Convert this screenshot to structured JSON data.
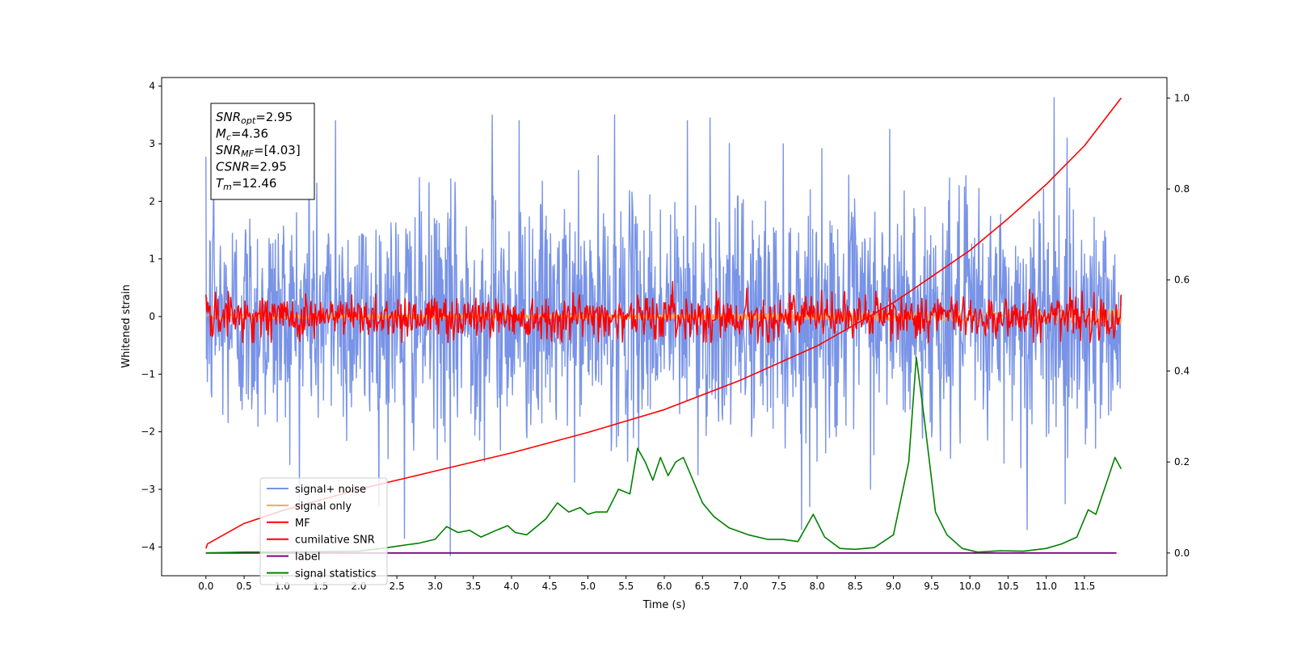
{
  "chart_data": {
    "type": "line",
    "xlabel": "Time (s)",
    "ylabel_left": "Whitened strain",
    "xlim": [
      -0.58,
      12.58
    ],
    "ylim_left": [
      -4.5,
      4.15
    ],
    "ylim_right": [
      -0.05,
      1.045
    ],
    "x_ticks": [
      0.0,
      0.5,
      1.0,
      1.5,
      2.0,
      2.5,
      3.0,
      3.5,
      4.0,
      4.5,
      5.0,
      5.5,
      6.0,
      6.5,
      7.0,
      7.5,
      8.0,
      8.5,
      9.0,
      9.5,
      10.0,
      10.5,
      11.0,
      11.5
    ],
    "x_tick_labels": [
      "0.0",
      "0.5",
      "1.0",
      "1.5",
      "2.0",
      "2.5",
      "3.0",
      "3.5",
      "4.0",
      "4.5",
      "5.0",
      "5.5",
      "6.0",
      "6.5",
      "7.0",
      "7.5",
      "8.0",
      "8.5",
      "9.0",
      "9.5",
      "10.0",
      "10.5",
      "11.0",
      "11.5"
    ],
    "y_ticks_left": [
      -4,
      -3,
      -2,
      -1,
      0,
      1,
      2,
      3,
      4
    ],
    "y_tick_labels_left": [
      "−4",
      "−3",
      "−2",
      "−1",
      "0",
      "1",
      "2",
      "3",
      "4"
    ],
    "y_ticks_right": [
      0.0,
      0.2,
      0.4,
      0.6,
      0.8,
      1.0
    ],
    "y_tick_labels_right": [
      "0.0",
      "0.2",
      "0.4",
      "0.6",
      "0.8",
      "1.0"
    ],
    "grid": false,
    "legend_position": "lower-left",
    "annotation_box": {
      "lines": [
        {
          "base": "SNR",
          "sub": "opt",
          "value": "=2.95"
        },
        {
          "base": "M",
          "sub": "c",
          "value": "=4.36"
        },
        {
          "base": "SNR",
          "sub": "MF",
          "value": "=[4.03]"
        },
        {
          "base": "CSNR",
          "sub": "",
          "value": "=2.95"
        },
        {
          "base": "T",
          "sub": "m",
          "value": "=12.46"
        }
      ]
    },
    "series": [
      {
        "name": "signal+ noise",
        "color": "#7893e7",
        "axis": "left",
        "kind": "noise",
        "x_range": [
          0.0,
          11.98
        ],
        "approx_sigma": 1.0,
        "peak_values": [
          {
            "x": 0.1,
            "y": 2.8
          },
          {
            "x": 1.35,
            "y": 3.3
          },
          {
            "x": 1.7,
            "y": 3.4
          },
          {
            "x": 3.75,
            "y": 3.5
          },
          {
            "x": 4.1,
            "y": 3.4
          },
          {
            "x": 5.35,
            "y": 3.5
          },
          {
            "x": 6.3,
            "y": 3.4
          },
          {
            "x": 6.6,
            "y": 3.45
          },
          {
            "x": 8.95,
            "y": 3.25
          },
          {
            "x": 11.1,
            "y": 3.8
          },
          {
            "x": 3.2,
            "y": -4.15
          },
          {
            "x": 2.6,
            "y": -3.85
          },
          {
            "x": 7.8,
            "y": -3.7
          },
          {
            "x": 10.75,
            "y": -3.7
          },
          {
            "x": 11.25,
            "y": -3.25
          }
        ]
      },
      {
        "name": "signal only",
        "color": "#f2a95c",
        "axis": "left",
        "kind": "chirp",
        "x_range": [
          0.0,
          11.98
        ],
        "amplitude_start": 0.03,
        "amplitude_end": 0.12
      },
      {
        "name": "MF",
        "color": "#ff0000",
        "axis": "left",
        "kind": "noise",
        "x_range": [
          0.0,
          11.98
        ],
        "band": [
          -0.45,
          0.65
        ]
      },
      {
        "name": "cumilative SNR",
        "color": "#ff0000",
        "axis": "right",
        "x": [
          0.0,
          0.02,
          0.5,
          1.0,
          2.0,
          3.0,
          4.0,
          5.0,
          6.0,
          7.0,
          8.0,
          9.0,
          10.0,
          10.5,
          11.0,
          11.5,
          11.98
        ],
        "values": [
          0.01,
          0.02,
          0.065,
          0.093,
          0.14,
          0.18,
          0.22,
          0.265,
          0.315,
          0.38,
          0.455,
          0.55,
          0.665,
          0.735,
          0.81,
          0.895,
          1.0
        ]
      },
      {
        "name": "label",
        "color": "#800080",
        "axis": "right",
        "x": [
          0.0,
          11.92
        ],
        "values": [
          0.0,
          0.0
        ]
      },
      {
        "name": "signal statistics",
        "color": "#008000",
        "axis": "right",
        "x": [
          0.0,
          0.5,
          1.0,
          1.5,
          2.0,
          2.3,
          2.5,
          2.8,
          3.0,
          3.15,
          3.3,
          3.45,
          3.6,
          3.8,
          3.95,
          4.05,
          4.2,
          4.45,
          4.6,
          4.75,
          4.9,
          5.0,
          5.1,
          5.25,
          5.4,
          5.55,
          5.65,
          5.75,
          5.85,
          5.95,
          6.05,
          6.15,
          6.25,
          6.35,
          6.5,
          6.65,
          6.85,
          7.1,
          7.35,
          7.55,
          7.75,
          7.95,
          8.1,
          8.3,
          8.5,
          8.75,
          9.0,
          9.2,
          9.3,
          9.4,
          9.55,
          9.7,
          9.9,
          10.1,
          10.4,
          10.7,
          11.0,
          11.2,
          11.4,
          11.55,
          11.65,
          11.8,
          11.9,
          11.98
        ],
        "values": [
          0.0,
          0.002,
          0.002,
          0.003,
          0.004,
          0.01,
          0.015,
          0.022,
          0.03,
          0.058,
          0.045,
          0.05,
          0.035,
          0.05,
          0.06,
          0.045,
          0.04,
          0.075,
          0.11,
          0.09,
          0.1,
          0.085,
          0.09,
          0.09,
          0.14,
          0.13,
          0.23,
          0.2,
          0.16,
          0.21,
          0.17,
          0.2,
          0.21,
          0.17,
          0.11,
          0.08,
          0.055,
          0.04,
          0.03,
          0.03,
          0.025,
          0.085,
          0.035,
          0.01,
          0.008,
          0.012,
          0.04,
          0.2,
          0.43,
          0.3,
          0.09,
          0.04,
          0.01,
          0.002,
          0.005,
          0.004,
          0.01,
          0.02,
          0.035,
          0.095,
          0.085,
          0.16,
          0.21,
          0.185
        ]
      }
    ]
  }
}
